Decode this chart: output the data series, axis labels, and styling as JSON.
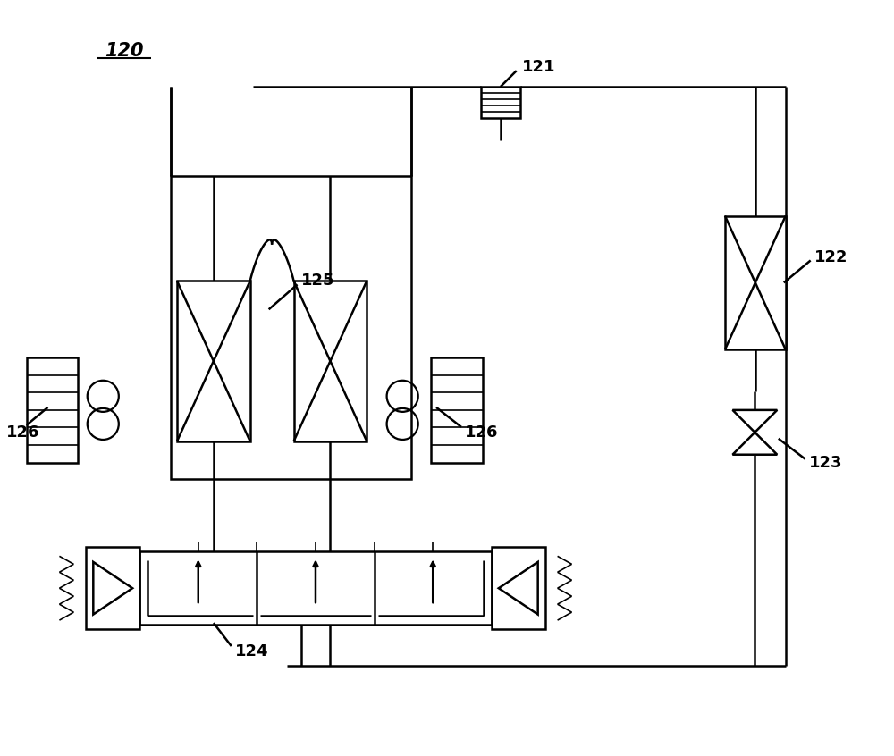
{
  "bg_color": "#ffffff",
  "line_color": "#000000",
  "lw": 1.8,
  "lw_thin": 1.2,
  "labels": {
    "120": "120",
    "121": "121",
    "122": "122",
    "123": "123",
    "124": "124",
    "125": "125",
    "126a": "126",
    "126b": "126"
  },
  "fontsize": 13,
  "fontweight": "bold"
}
